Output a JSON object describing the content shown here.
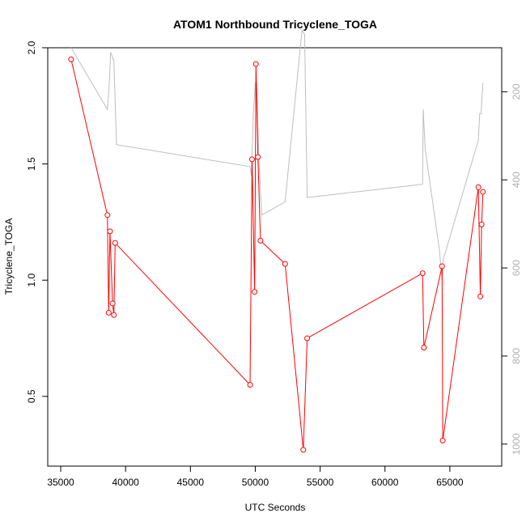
{
  "chart_data": {
    "type": "line",
    "title": "ATOM1 Northbound Tricyclene_TOGA",
    "xlabel": "UTC Seconds",
    "ylabel": "Tricyclene_TOGA",
    "xlim": [
      34000,
      69000
    ],
    "ylim": [
      0.2,
      2.0
    ],
    "y2lim": [
      1050,
      100
    ],
    "x_ticks": [
      35000,
      40000,
      45000,
      50000,
      55000,
      60000,
      65000
    ],
    "y_ticks": [
      0.5,
      1.0,
      1.5,
      2.0
    ],
    "y2_ticks": [
      200,
      400,
      600,
      800,
      1000
    ],
    "grid": false,
    "colors": {
      "primary": "#ff0000",
      "secondary": "#bebebe",
      "axis": "#000000",
      "secondary_axis_text": "#b0b0b0"
    },
    "series": [
      {
        "axis": "left",
        "style": "line+points",
        "x": [
          35800,
          38600,
          38700,
          38800,
          39000,
          39100,
          39200,
          49600,
          49750,
          49950,
          50050,
          50200,
          50400,
          52300,
          53700,
          54000,
          62900,
          63000,
          64400,
          64450,
          67200,
          67350,
          67450,
          67550
        ],
        "y": [
          1.95,
          1.28,
          0.86,
          1.21,
          0.9,
          0.85,
          1.16,
          0.55,
          1.52,
          0.95,
          1.93,
          1.53,
          1.17,
          1.07,
          0.27,
          0.75,
          1.03,
          0.71,
          1.06,
          0.31,
          1.4,
          0.93,
          1.24,
          1.38
        ]
      },
      {
        "axis": "right",
        "style": "line",
        "x": [
          35800,
          38600,
          38750,
          38850,
          39100,
          39300,
          49600,
          49700,
          49850,
          50000,
          50100,
          50300,
          50500,
          52300,
          53600,
          53800,
          54000,
          62900,
          62950,
          63100,
          64200,
          64400,
          64500,
          67200,
          67300,
          67400,
          67550
        ],
        "y": [
          100,
          240,
          180,
          110,
          130,
          320,
          370,
          390,
          250,
          180,
          180,
          370,
          480,
          450,
          60,
          70,
          440,
          410,
          240,
          330,
          560,
          630,
          580,
          310,
          250,
          250,
          180
        ]
      }
    ]
  }
}
